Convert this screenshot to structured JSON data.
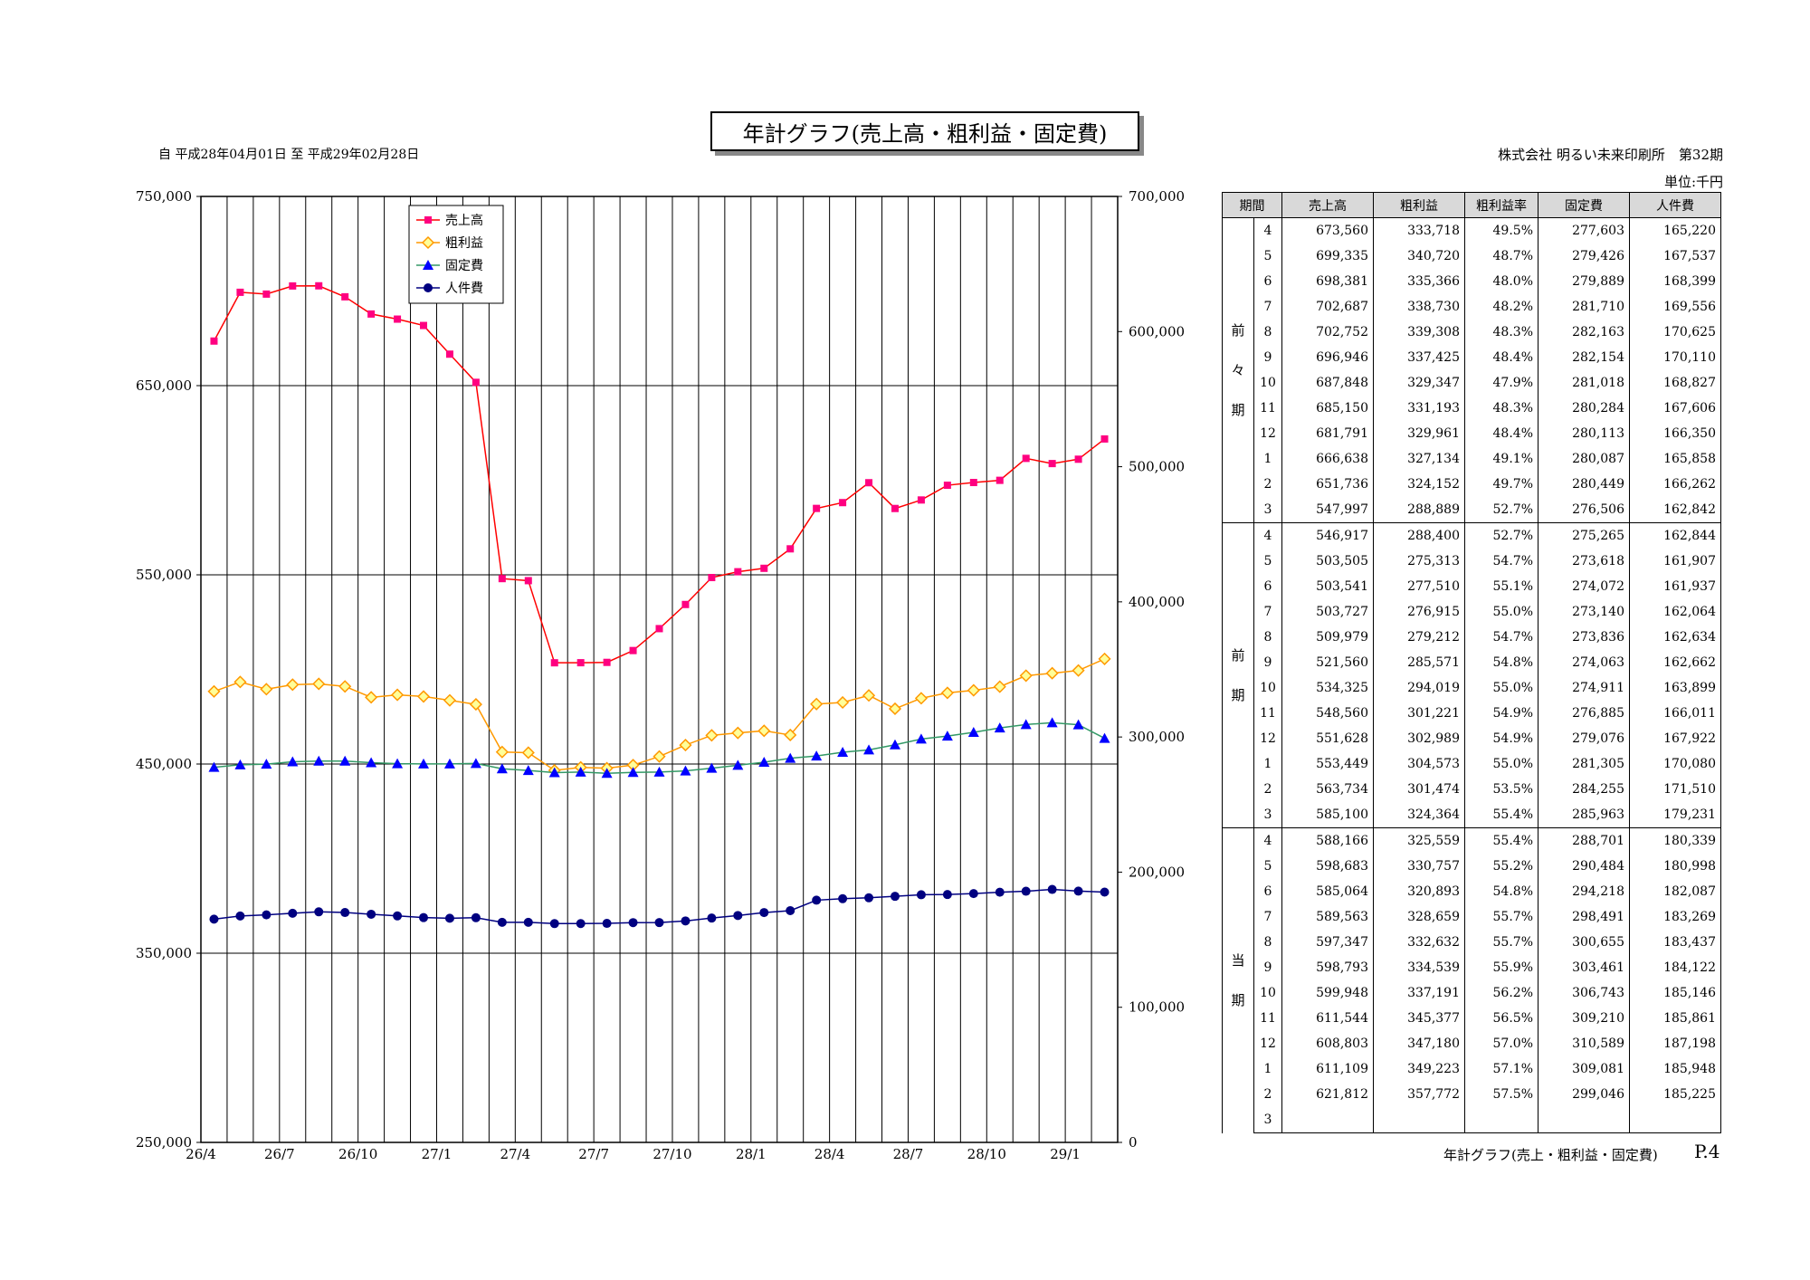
{
  "header": {
    "title": "年計グラフ(売上高・粗利益・固定費)",
    "period": "自 平成28年04月01日 至 平成29年02月28日",
    "company": "株式会社 明るい未来印刷所　第32期",
    "unit": "単位:千円"
  },
  "footer": {
    "caption": "年計グラフ(売上・粗利益・固定費)",
    "page": "P.4"
  },
  "chart_data": {
    "type": "line",
    "categories": [
      "26/4",
      "26/5",
      "26/6",
      "26/7",
      "26/8",
      "26/9",
      "26/10",
      "26/11",
      "26/12",
      "27/1",
      "27/2",
      "27/3",
      "27/4",
      "27/5",
      "27/6",
      "27/7",
      "27/8",
      "27/9",
      "27/10",
      "27/11",
      "27/12",
      "28/1",
      "28/2",
      "28/3",
      "28/4",
      "28/5",
      "28/6",
      "28/7",
      "28/8",
      "28/9",
      "28/10",
      "28/11",
      "28/12",
      "29/1",
      "29/2"
    ],
    "x_tick_labels": [
      "26/4",
      "26/7",
      "26/10",
      "27/1",
      "27/4",
      "27/7",
      "27/10",
      "28/1",
      "28/4",
      "28/7",
      "28/10",
      "29/1"
    ],
    "left_axis": {
      "min": 250000,
      "max": 750000,
      "ticks": [
        "250,000",
        "350,000",
        "450,000",
        "550,000",
        "650,000",
        "750,000"
      ]
    },
    "right_axis": {
      "min": 0,
      "max": 700000,
      "ticks": [
        "0",
        "100,000",
        "200,000",
        "300,000",
        "400,000",
        "500,000",
        "600,000",
        "700,000"
      ]
    },
    "grid": true,
    "legend_position": "top-left",
    "series": [
      {
        "name": "売上高",
        "axis": "left",
        "color": "#ff0080",
        "marker": "square",
        "line_color": "#ff0000",
        "values": [
          673560,
          699335,
          698381,
          702687,
          702752,
          696946,
          687848,
          685150,
          681791,
          666638,
          651736,
          547997,
          546917,
          503505,
          503541,
          503727,
          509979,
          521560,
          534325,
          548560,
          551628,
          553449,
          563734,
          585100,
          588166,
          598683,
          585064,
          589563,
          597347,
          598793,
          599948,
          611544,
          608803,
          611109,
          621812
        ]
      },
      {
        "name": "粗利益",
        "axis": "right",
        "color": "#ff9900",
        "marker": "diamond",
        "line_color": "#ff9900",
        "values": [
          333718,
          340720,
          335366,
          338730,
          339308,
          337425,
          329347,
          331193,
          329961,
          327134,
          324152,
          288889,
          288400,
          275313,
          277510,
          276915,
          279212,
          285571,
          294019,
          301221,
          302989,
          304573,
          301474,
          324364,
          325559,
          330757,
          320893,
          328659,
          332632,
          334539,
          337191,
          345377,
          347180,
          349223,
          357772
        ]
      },
      {
        "name": "固定費",
        "axis": "right",
        "color": "#0000ff",
        "marker": "triangle",
        "line_color": "#339966",
        "values": [
          277603,
          279426,
          279889,
          281710,
          282163,
          282154,
          281018,
          280284,
          280113,
          280087,
          280449,
          276506,
          275265,
          273618,
          274072,
          273140,
          273836,
          274063,
          274911,
          276885,
          279076,
          281305,
          284255,
          285963,
          288701,
          290484,
          294218,
          298491,
          300655,
          303461,
          306743,
          309210,
          310589,
          309081,
          299046
        ]
      },
      {
        "name": "人件費",
        "axis": "right",
        "color": "#000080",
        "marker": "circle",
        "line_color": "#000080",
        "values": [
          165220,
          167537,
          168399,
          169556,
          170625,
          170110,
          168827,
          167606,
          166350,
          165858,
          166262,
          162842,
          162844,
          161907,
          161937,
          162064,
          162634,
          162662,
          163899,
          166011,
          167922,
          170080,
          171510,
          179231,
          180339,
          180998,
          182087,
          183269,
          183437,
          184122,
          185146,
          185861,
          187198,
          185948,
          185225
        ]
      }
    ]
  },
  "table": {
    "headers": [
      "期間",
      "売上高",
      "粗利益",
      "粗利益率",
      "固定費",
      "人件費"
    ],
    "groups": [
      {
        "label_chars": [
          "前",
          "々",
          "期"
        ],
        "rows": [
          [
            "4",
            "673,560",
            "333,718",
            "49.5%",
            "277,603",
            "165,220"
          ],
          [
            "5",
            "699,335",
            "340,720",
            "48.7%",
            "279,426",
            "167,537"
          ],
          [
            "6",
            "698,381",
            "335,366",
            "48.0%",
            "279,889",
            "168,399"
          ],
          [
            "7",
            "702,687",
            "338,730",
            "48.2%",
            "281,710",
            "169,556"
          ],
          [
            "8",
            "702,752",
            "339,308",
            "48.3%",
            "282,163",
            "170,625"
          ],
          [
            "9",
            "696,946",
            "337,425",
            "48.4%",
            "282,154",
            "170,110"
          ],
          [
            "10",
            "687,848",
            "329,347",
            "47.9%",
            "281,018",
            "168,827"
          ],
          [
            "11",
            "685,150",
            "331,193",
            "48.3%",
            "280,284",
            "167,606"
          ],
          [
            "12",
            "681,791",
            "329,961",
            "48.4%",
            "280,113",
            "166,350"
          ],
          [
            "1",
            "666,638",
            "327,134",
            "49.1%",
            "280,087",
            "165,858"
          ],
          [
            "2",
            "651,736",
            "324,152",
            "49.7%",
            "280,449",
            "166,262"
          ],
          [
            "3",
            "547,997",
            "288,889",
            "52.7%",
            "276,506",
            "162,842"
          ]
        ]
      },
      {
        "label_chars": [
          "前",
          "期"
        ],
        "rows": [
          [
            "4",
            "546,917",
            "288,400",
            "52.7%",
            "275,265",
            "162,844"
          ],
          [
            "5",
            "503,505",
            "275,313",
            "54.7%",
            "273,618",
            "161,907"
          ],
          [
            "6",
            "503,541",
            "277,510",
            "55.1%",
            "274,072",
            "161,937"
          ],
          [
            "7",
            "503,727",
            "276,915",
            "55.0%",
            "273,140",
            "162,064"
          ],
          [
            "8",
            "509,979",
            "279,212",
            "54.7%",
            "273,836",
            "162,634"
          ],
          [
            "9",
            "521,560",
            "285,571",
            "54.8%",
            "274,063",
            "162,662"
          ],
          [
            "10",
            "534,325",
            "294,019",
            "55.0%",
            "274,911",
            "163,899"
          ],
          [
            "11",
            "548,560",
            "301,221",
            "54.9%",
            "276,885",
            "166,011"
          ],
          [
            "12",
            "551,628",
            "302,989",
            "54.9%",
            "279,076",
            "167,922"
          ],
          [
            "1",
            "553,449",
            "304,573",
            "55.0%",
            "281,305",
            "170,080"
          ],
          [
            "2",
            "563,734",
            "301,474",
            "53.5%",
            "284,255",
            "171,510"
          ],
          [
            "3",
            "585,100",
            "324,364",
            "55.4%",
            "285,963",
            "179,231"
          ]
        ]
      },
      {
        "label_chars": [
          "当",
          "期"
        ],
        "rows": [
          [
            "4",
            "588,166",
            "325,559",
            "55.4%",
            "288,701",
            "180,339"
          ],
          [
            "5",
            "598,683",
            "330,757",
            "55.2%",
            "290,484",
            "180,998"
          ],
          [
            "6",
            "585,064",
            "320,893",
            "54.8%",
            "294,218",
            "182,087"
          ],
          [
            "7",
            "589,563",
            "328,659",
            "55.7%",
            "298,491",
            "183,269"
          ],
          [
            "8",
            "597,347",
            "332,632",
            "55.7%",
            "300,655",
            "183,437"
          ],
          [
            "9",
            "598,793",
            "334,539",
            "55.9%",
            "303,461",
            "184,122"
          ],
          [
            "10",
            "599,948",
            "337,191",
            "56.2%",
            "306,743",
            "185,146"
          ],
          [
            "11",
            "611,544",
            "345,377",
            "56.5%",
            "309,210",
            "185,861"
          ],
          [
            "12",
            "608,803",
            "347,180",
            "57.0%",
            "310,589",
            "187,198"
          ],
          [
            "1",
            "611,109",
            "349,223",
            "57.1%",
            "309,081",
            "185,948"
          ],
          [
            "2",
            "621,812",
            "357,772",
            "57.5%",
            "299,046",
            "185,225"
          ],
          [
            "3",
            "",
            "",
            "",
            "",
            ""
          ]
        ]
      }
    ]
  }
}
